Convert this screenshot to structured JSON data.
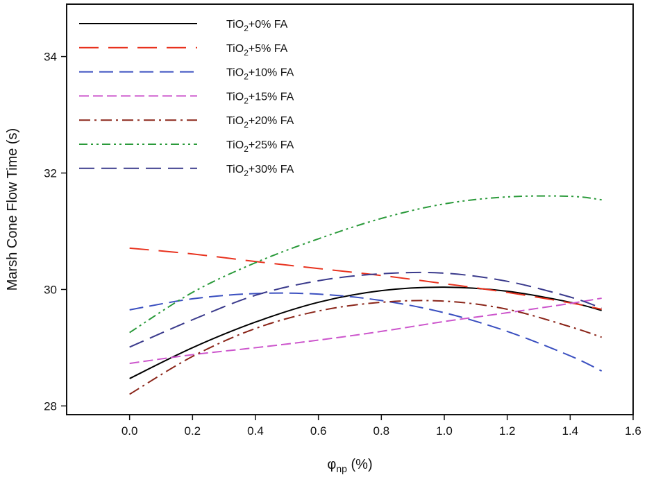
{
  "chart_data": {
    "type": "line",
    "title": "",
    "xlabel": "φ",
    "xlabel_sub": "np",
    "xlabel_unit": " (%)",
    "ylabel": "Marsh Cone Flow Time (s)",
    "xlim": [
      -0.2,
      1.6
    ],
    "ylim": [
      27.85,
      34.9
    ],
    "xticks": [
      0.0,
      0.2,
      0.4,
      0.6,
      0.8,
      1.0,
      1.2,
      1.4,
      1.6
    ],
    "xtick_labels": [
      "0.0",
      "0.2",
      "0.4",
      "0.6",
      "0.8",
      "1.0",
      "1.2",
      "1.4",
      "1.6"
    ],
    "yticks": [
      28,
      30,
      32,
      34
    ],
    "ytick_labels": [
      "28",
      "30",
      "32",
      "34"
    ],
    "legend_position": "top-left",
    "series": [
      {
        "name": "TiO2+0% FA",
        "label_prefix": "TiO",
        "label_sub": "2",
        "label_suffix": "+0% FA",
        "color": "#000000",
        "dash": "none",
        "x": [
          0.0,
          0.2,
          0.4,
          0.6,
          0.8,
          1.0,
          1.2,
          1.4,
          1.5
        ],
        "y": [
          28.47,
          29.0,
          29.44,
          29.78,
          29.98,
          30.04,
          29.97,
          29.78,
          29.64
        ]
      },
      {
        "name": "TiO2+5% FA",
        "label_prefix": "TiO",
        "label_sub": "2",
        "label_suffix": "+5% FA",
        "color": "#e8321e",
        "dash": "28 14",
        "x": [
          0.0,
          0.2,
          0.4,
          0.6,
          0.8,
          1.0,
          1.2,
          1.4,
          1.5
        ],
        "y": [
          30.71,
          30.61,
          30.48,
          30.36,
          30.24,
          30.1,
          29.95,
          29.77,
          29.66
        ]
      },
      {
        "name": "TiO2+10% FA",
        "label_prefix": "TiO",
        "label_sub": "2",
        "label_suffix": "+10% FA",
        "color": "#3a4fc0",
        "dash": "20 9",
        "x": [
          0.0,
          0.2,
          0.4,
          0.6,
          0.8,
          1.0,
          1.2,
          1.4,
          1.5
        ],
        "y": [
          29.65,
          29.84,
          29.93,
          29.92,
          29.81,
          29.6,
          29.28,
          28.86,
          28.6
        ]
      },
      {
        "name": "TiO2+15% FA",
        "label_prefix": "TiO",
        "label_sub": "2",
        "label_suffix": "+15% FA",
        "color": "#cc55cc",
        "dash": "14 6",
        "x": [
          0.0,
          0.2,
          0.4,
          0.6,
          0.8,
          1.0,
          1.2,
          1.4,
          1.5
        ],
        "y": [
          28.73,
          28.88,
          29.0,
          29.13,
          29.28,
          29.45,
          29.6,
          29.76,
          29.85
        ]
      },
      {
        "name": "TiO2+20% FA",
        "label_prefix": "TiO",
        "label_sub": "2",
        "label_suffix": "+20% FA",
        "color": "#8a2418",
        "dash": "16 6 3 6",
        "x": [
          0.0,
          0.2,
          0.4,
          0.6,
          0.8,
          1.0,
          1.2,
          1.4,
          1.5
        ],
        "y": [
          28.2,
          28.85,
          29.33,
          29.63,
          29.78,
          29.8,
          29.66,
          29.36,
          29.18
        ]
      },
      {
        "name": "TiO2+25% FA",
        "label_prefix": "TiO",
        "label_sub": "2",
        "label_suffix": "+25% FA",
        "color": "#2a9a3a",
        "dash": "12 5 3 5 3 5",
        "x": [
          0.0,
          0.2,
          0.4,
          0.6,
          0.8,
          1.0,
          1.2,
          1.4,
          1.5
        ],
        "y": [
          29.26,
          29.95,
          30.46,
          30.87,
          31.22,
          31.47,
          31.59,
          31.6,
          31.54
        ]
      },
      {
        "name": "TiO2+30% FA",
        "label_prefix": "TiO",
        "label_sub": "2",
        "label_suffix": "+30% FA",
        "color": "#3a3a8c",
        "dash": "22 10",
        "x": [
          0.0,
          0.2,
          0.4,
          0.6,
          0.8,
          1.0,
          1.2,
          1.4,
          1.5
        ],
        "y": [
          29.01,
          29.48,
          29.9,
          30.15,
          30.27,
          30.28,
          30.14,
          29.87,
          29.68
        ]
      }
    ]
  }
}
